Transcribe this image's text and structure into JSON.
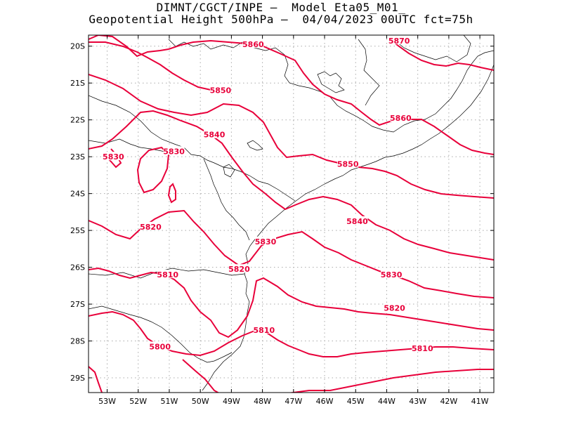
{
  "title": {
    "line1": "DIMNT/CGCT/INPE –  Model Eta05_M01_",
    "line2": "Geopotential Height 500hPa –  04/04/2023 00UTC fct=75h"
  },
  "axes": {
    "lon_ticks": [
      "53W",
      "52W",
      "51W",
      "50W",
      "49W",
      "48W",
      "47W",
      "46W",
      "45W",
      "44W",
      "43W",
      "42W",
      "41W"
    ],
    "lat_ticks": [
      "20S",
      "21S",
      "22S",
      "23S",
      "24S",
      "25S",
      "26S",
      "27S",
      "28S",
      "29S"
    ],
    "lon_range": [
      -53.6,
      -40.55
    ],
    "lat_range": [
      -29.4,
      -19.7
    ],
    "grid": "dotted"
  },
  "style": {
    "contour_color": "#e8003a",
    "border_color": "#000000",
    "grid_color": "#aaaaaa"
  },
  "contour_labels": [
    {
      "text": "5870",
      "lon": -43.6,
      "lat": -19.85
    },
    {
      "text": "5860",
      "lon": -48.3,
      "lat": -19.95
    },
    {
      "text": "5860",
      "lon": -43.55,
      "lat": -21.95
    },
    {
      "text": "5850",
      "lon": -49.35,
      "lat": -21.2
    },
    {
      "text": "5850",
      "lon": -45.25,
      "lat": -23.2
    },
    {
      "text": "5840",
      "lon": -49.55,
      "lat": -22.4
    },
    {
      "text": "5840",
      "lon": -44.95,
      "lat": -24.75
    },
    {
      "text": "5830",
      "lon": -52.8,
      "lat": -23.0
    },
    {
      "text": "5830",
      "lon": -50.85,
      "lat": -22.85
    },
    {
      "text": "5830",
      "lon": -47.9,
      "lat": -25.3
    },
    {
      "text": "5830",
      "lon": -43.85,
      "lat": -26.2
    },
    {
      "text": "5820",
      "lon": -51.6,
      "lat": -24.9
    },
    {
      "text": "5820",
      "lon": -48.75,
      "lat": -26.05
    },
    {
      "text": "5820",
      "lon": -43.75,
      "lat": -27.1
    },
    {
      "text": "5810",
      "lon": -51.05,
      "lat": -26.2
    },
    {
      "text": "5810",
      "lon": -47.95,
      "lat": -27.7
    },
    {
      "text": "5810",
      "lon": -42.85,
      "lat": -28.2
    },
    {
      "text": "5800",
      "lon": -51.3,
      "lat": -28.15
    }
  ]
}
